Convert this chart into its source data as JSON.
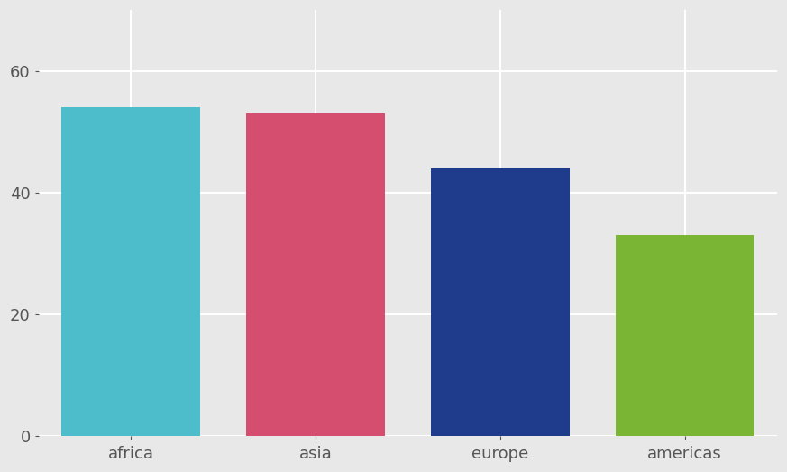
{
  "categories": [
    "africa",
    "asia",
    "europe",
    "americas"
  ],
  "values": [
    54,
    53,
    44,
    33
  ],
  "bar_colors": [
    "#4dbdcb",
    "#d64e6f",
    "#1f3b8c",
    "#7ab534"
  ],
  "background_color": "#e8e8e8",
  "grid_color": "#ffffff",
  "yticks": [
    0,
    20,
    40,
    60
  ],
  "ylim": [
    0,
    70
  ],
  "tick_fontsize": 13,
  "label_fontsize": 13,
  "bar_width": 0.75
}
